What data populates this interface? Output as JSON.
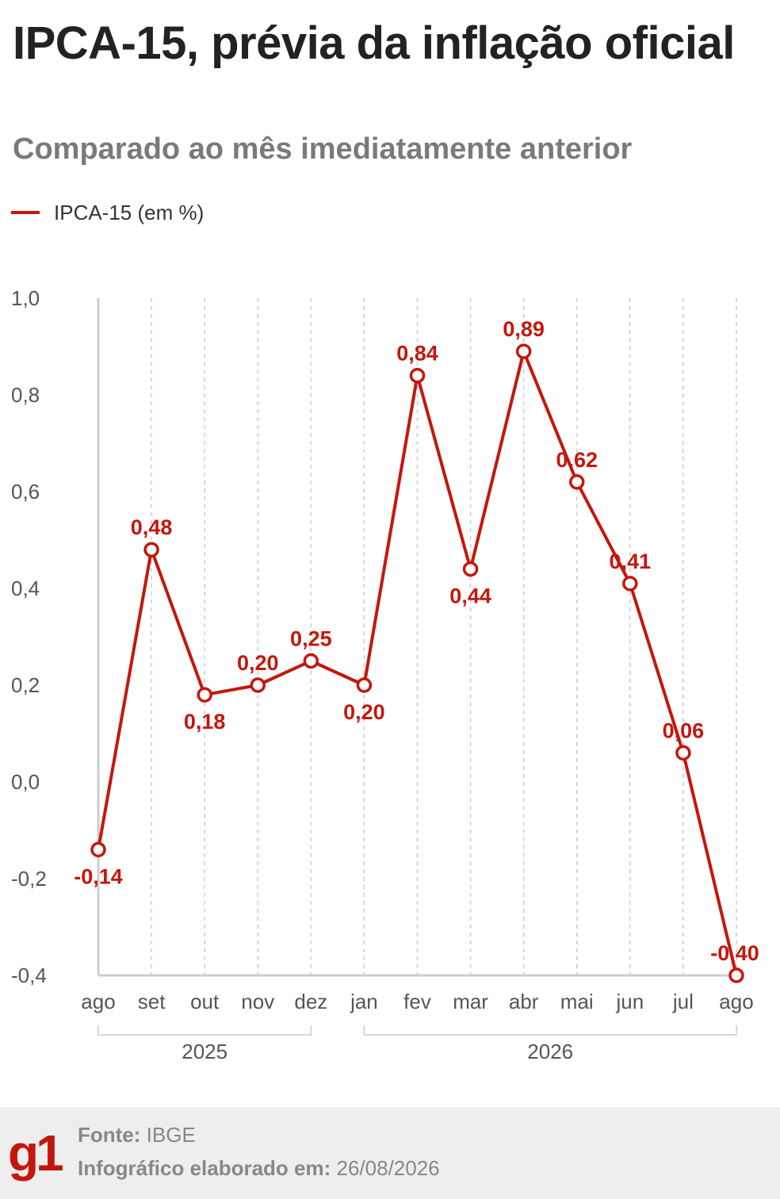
{
  "title": "IPCA-15, prévia da inflação oficial",
  "subtitle": "Comparado ao mês imediatamente anterior",
  "colors": {
    "series": "#c4170c",
    "title": "#222222",
    "subtitle": "#7a7a7a",
    "axis": "#cccccc",
    "grid": "#cccccc",
    "tick_text": "#555555",
    "footer_bg": "#eeeeee"
  },
  "chart_data": {
    "type": "line",
    "categories": [
      "ago",
      "set",
      "out",
      "nov",
      "dez",
      "jan",
      "fev",
      "mar",
      "abr",
      "mai",
      "jun",
      "jul",
      "ago"
    ],
    "series": [
      {
        "name": "IPCA-15 (em %)",
        "values": [
          -0.14,
          0.48,
          0.18,
          0.2,
          0.25,
          0.2,
          0.84,
          0.44,
          0.89,
          0.62,
          0.41,
          0.06,
          -0.4
        ],
        "labels": [
          "-0,14",
          "0,48",
          "0,18",
          "0,20",
          "0,25",
          "0,20",
          "0,84",
          "0,44",
          "0,89",
          "0,62",
          "0,41",
          "0,06",
          "-0,40"
        ],
        "label_positions": [
          "below",
          "above",
          "below",
          "above",
          "above",
          "below",
          "above",
          "below",
          "above",
          "above",
          "above",
          "above",
          "above"
        ]
      }
    ],
    "y_ticks": [
      1.0,
      0.8,
      0.6,
      0.4,
      0.2,
      0.0,
      -0.2,
      -0.4
    ],
    "y_tick_labels": [
      "1,0",
      "0,8",
      "0,6",
      "0,4",
      "0,2",
      "0,0",
      "-0,2",
      "-0,4"
    ],
    "ylim": [
      -0.4,
      1.0
    ],
    "year_groups": [
      {
        "label": "2025",
        "start": 0,
        "end": 4
      },
      {
        "label": "2026",
        "start": 5,
        "end": 12
      }
    ],
    "grid": "vertical dashed",
    "legend_position": "top-left",
    "xlabel": "",
    "ylabel": ""
  },
  "footer": {
    "logo": "g1",
    "source_label": "Fonte:",
    "source_value": "IBGE",
    "date_label": "Infográfico elaborado em:",
    "date_value": "26/08/2026"
  }
}
